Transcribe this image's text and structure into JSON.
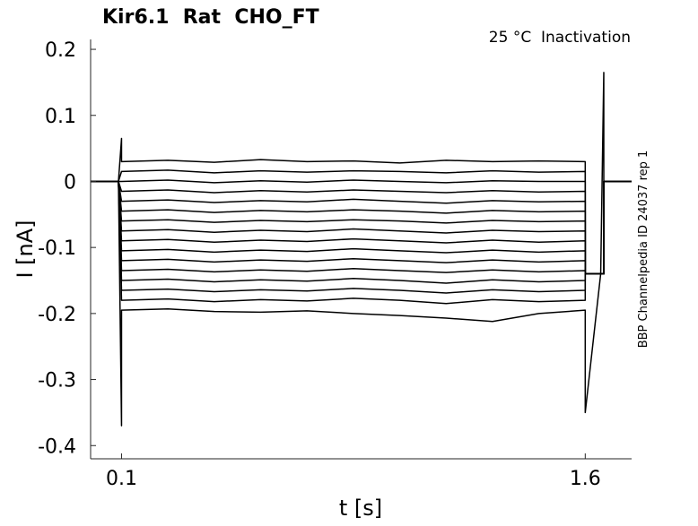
{
  "chart_data": {
    "type": "line",
    "title": "Kir6.1  Rat  CHO_FT",
    "annotation": "25 °C  Inactivation",
    "side_note": "BBP Channelpedia ID 24037 rep 1",
    "x_label": "t [s]",
    "y_label": "I [nA]",
    "color": "#000000",
    "xlim": [
      0,
      1.75
    ],
    "xticks": [
      0.1,
      1.6
    ],
    "ylim": [
      -0.42,
      0.215
    ],
    "yticks": [
      0.2,
      0.1,
      0,
      -0.1,
      -0.2,
      -0.3,
      -0.4
    ],
    "x": [
      0,
      0.09,
      0.1,
      0.1,
      0.25,
      0.4,
      0.55,
      0.7,
      0.85,
      1.0,
      1.15,
      1.3,
      1.45,
      1.6,
      1.6,
      1.65,
      1.66,
      1.66,
      1.75
    ],
    "series": [
      {
        "values": [
          0,
          0,
          0.065,
          0.03,
          0.032,
          0.029,
          0.033,
          0.03,
          0.031,
          0.028,
          0.032,
          0.03,
          0.031,
          0.03,
          -0.14,
          -0.14,
          0.165,
          0,
          0
        ]
      },
      {
        "values": [
          0,
          0,
          0.015,
          0.015,
          0.017,
          0.013,
          0.016,
          0.014,
          0.016,
          0.015,
          0.013,
          0.016,
          0.014,
          0.015,
          -0.14,
          -0.14,
          -0.14,
          0,
          0
        ]
      },
      {
        "values": [
          0,
          0,
          0,
          0,
          0.002,
          -0.002,
          0.001,
          -0.001,
          0.002,
          0,
          -0.002,
          0.001,
          0,
          0,
          -0.14,
          -0.14,
          -0.14,
          0,
          0
        ]
      },
      {
        "values": [
          0,
          0,
          -0.015,
          -0.015,
          -0.013,
          -0.017,
          -0.014,
          -0.016,
          -0.013,
          -0.015,
          -0.017,
          -0.014,
          -0.016,
          -0.015,
          -0.14,
          -0.14,
          -0.14,
          0,
          0
        ]
      },
      {
        "values": [
          0,
          0,
          -0.03,
          -0.03,
          -0.028,
          -0.032,
          -0.029,
          -0.031,
          -0.027,
          -0.03,
          -0.033,
          -0.029,
          -0.031,
          -0.03,
          -0.14,
          -0.14,
          -0.14,
          0,
          0
        ]
      },
      {
        "values": [
          0,
          0,
          -0.045,
          -0.045,
          -0.043,
          -0.047,
          -0.044,
          -0.046,
          -0.043,
          -0.045,
          -0.048,
          -0.044,
          -0.046,
          -0.045,
          -0.14,
          -0.14,
          -0.14,
          0,
          0
        ]
      },
      {
        "values": [
          0,
          0,
          -0.06,
          -0.06,
          -0.058,
          -0.062,
          -0.059,
          -0.061,
          -0.058,
          -0.06,
          -0.063,
          -0.059,
          -0.061,
          -0.06,
          -0.14,
          -0.14,
          -0.14,
          0,
          0
        ]
      },
      {
        "values": [
          0,
          0,
          -0.075,
          -0.075,
          -0.073,
          -0.077,
          -0.074,
          -0.076,
          -0.072,
          -0.075,
          -0.078,
          -0.074,
          -0.076,
          -0.075,
          -0.14,
          -0.14,
          -0.14,
          0,
          0
        ]
      },
      {
        "values": [
          0,
          0,
          -0.09,
          -0.09,
          -0.088,
          -0.092,
          -0.089,
          -0.091,
          -0.087,
          -0.09,
          -0.093,
          -0.089,
          -0.092,
          -0.09,
          -0.14,
          -0.14,
          -0.14,
          0,
          0
        ]
      },
      {
        "values": [
          0,
          0,
          -0.105,
          -0.105,
          -0.103,
          -0.107,
          -0.104,
          -0.106,
          -0.102,
          -0.105,
          -0.108,
          -0.104,
          -0.107,
          -0.105,
          -0.14,
          -0.14,
          -0.14,
          0,
          0
        ]
      },
      {
        "values": [
          0,
          0,
          -0.12,
          -0.12,
          -0.118,
          -0.122,
          -0.119,
          -0.121,
          -0.117,
          -0.12,
          -0.123,
          -0.119,
          -0.122,
          -0.12,
          -0.14,
          -0.14,
          -0.14,
          0,
          0
        ]
      },
      {
        "values": [
          0,
          0,
          -0.135,
          -0.135,
          -0.133,
          -0.137,
          -0.134,
          -0.136,
          -0.132,
          -0.135,
          -0.138,
          -0.134,
          -0.137,
          -0.135,
          -0.14,
          -0.14,
          -0.14,
          0,
          0
        ]
      },
      {
        "values": [
          0,
          0,
          -0.15,
          -0.15,
          -0.148,
          -0.152,
          -0.149,
          -0.151,
          -0.147,
          -0.15,
          -0.154,
          -0.149,
          -0.152,
          -0.15,
          -0.14,
          -0.14,
          -0.14,
          0,
          0
        ]
      },
      {
        "values": [
          0,
          0,
          -0.165,
          -0.165,
          -0.163,
          -0.167,
          -0.164,
          -0.166,
          -0.162,
          -0.165,
          -0.169,
          -0.164,
          -0.167,
          -0.165,
          -0.14,
          -0.14,
          -0.14,
          0,
          0
        ]
      },
      {
        "values": [
          0,
          0,
          -0.18,
          -0.18,
          -0.178,
          -0.182,
          -0.179,
          -0.181,
          -0.177,
          -0.18,
          -0.185,
          -0.179,
          -0.182,
          -0.18,
          -0.14,
          -0.14,
          -0.14,
          0,
          0
        ]
      },
      {
        "values": [
          0,
          0,
          -0.37,
          -0.195,
          -0.193,
          -0.197,
          -0.198,
          -0.196,
          -0.2,
          -0.203,
          -0.207,
          -0.212,
          -0.2,
          -0.195,
          -0.35,
          -0.14,
          -0.14,
          0,
          0
        ]
      }
    ]
  }
}
